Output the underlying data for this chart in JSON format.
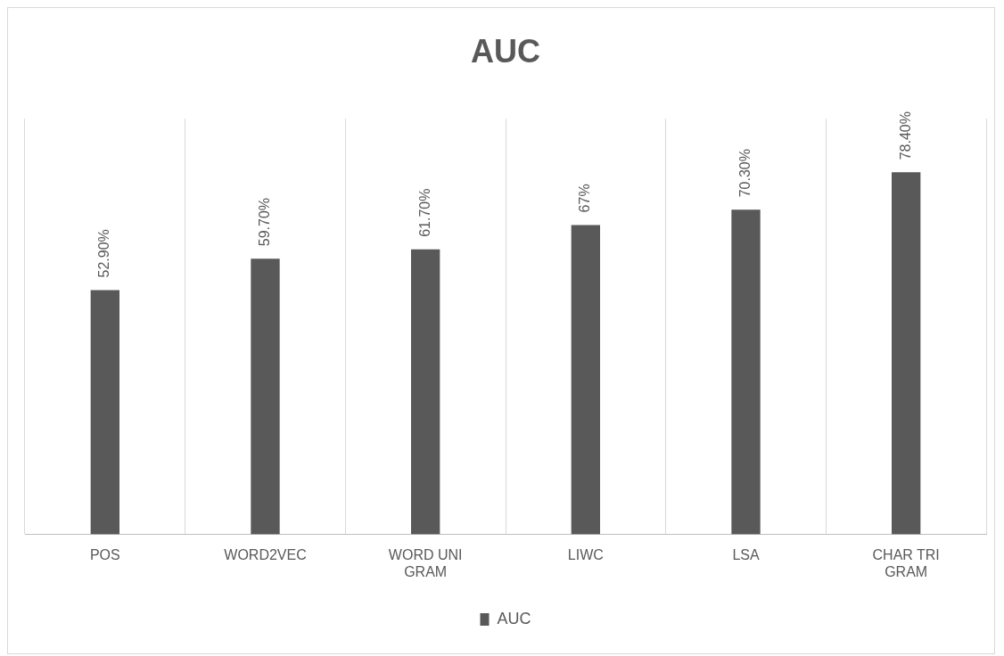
{
  "chart_data": {
    "type": "bar",
    "title": "AUC",
    "categories": [
      "POS",
      "WORD2VEC",
      "WORD UNI GRAM",
      "LIWC",
      "LSA",
      "CHAR TRI GRAM"
    ],
    "series": [
      {
        "name": "AUC",
        "color": "#595959",
        "values": [
          52.9,
          59.7,
          61.7,
          67,
          70.3,
          78.4
        ],
        "value_labels": [
          "52.90%",
          "59.70%",
          "61.70%",
          "67%",
          "70.30%",
          "78.40%"
        ]
      }
    ],
    "ylim": [
      0,
      90
    ],
    "tick_labels": "x",
    "grid": "x",
    "legend": "bottom"
  }
}
